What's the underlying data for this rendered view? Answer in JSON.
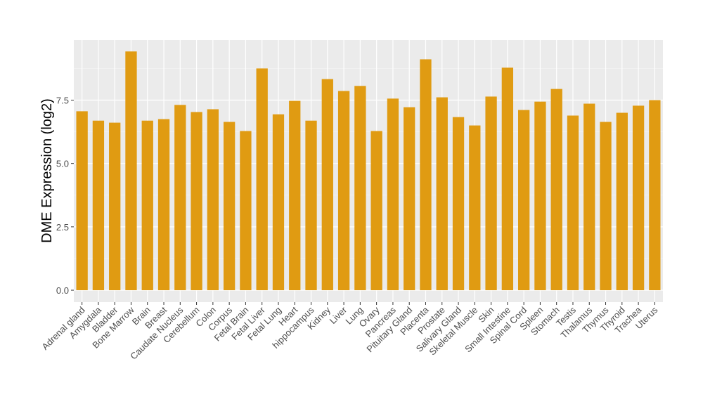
{
  "chart_data": {
    "type": "bar",
    "title": "",
    "xlabel": "",
    "ylabel": "DME Expression (log2)",
    "ylim": [
      -0.47,
      9.87
    ],
    "yticks": [
      0.0,
      2.5,
      5.0,
      7.5
    ],
    "ytick_labels": [
      "0.0",
      "2.5",
      "5.0",
      "7.5"
    ],
    "grid": true,
    "legend": "none",
    "bar_color": "#E09B12",
    "panel_color": "#EBEBEB",
    "categories": [
      "Adrenal gland",
      "Amygdala",
      "Bladder",
      "Bone Marrow",
      "Brain",
      "Breast",
      "Caudate Nucleus",
      "Cerebellum",
      "Colon",
      "Corpus",
      "Fetal Brain",
      "Fetal Liver",
      "Fetal Lung",
      "Heart",
      "hippocampus",
      "Kidney",
      "Liver",
      "Lung",
      "Ovary",
      "Pancreas",
      "Pituitary Gland",
      "Placenta",
      "Prostate",
      "Salivary Gland",
      "Skeletal Muscle",
      "Skin",
      "Small Intestine",
      "Spinal Cord",
      "Spleen",
      "Stomach",
      "Testis",
      "Thalamus",
      "Thymus",
      "Thyroid",
      "Trachea",
      "Uterus"
    ],
    "values": [
      7.06,
      6.69,
      6.61,
      9.42,
      6.69,
      6.75,
      7.31,
      7.03,
      7.14,
      6.64,
      6.28,
      8.75,
      6.94,
      7.47,
      6.69,
      8.33,
      7.86,
      8.06,
      6.28,
      7.56,
      7.22,
      9.11,
      7.61,
      6.83,
      6.5,
      7.64,
      8.78,
      7.11,
      7.44,
      7.94,
      6.89,
      7.36,
      6.64,
      7.0,
      7.28,
      7.5
    ]
  }
}
